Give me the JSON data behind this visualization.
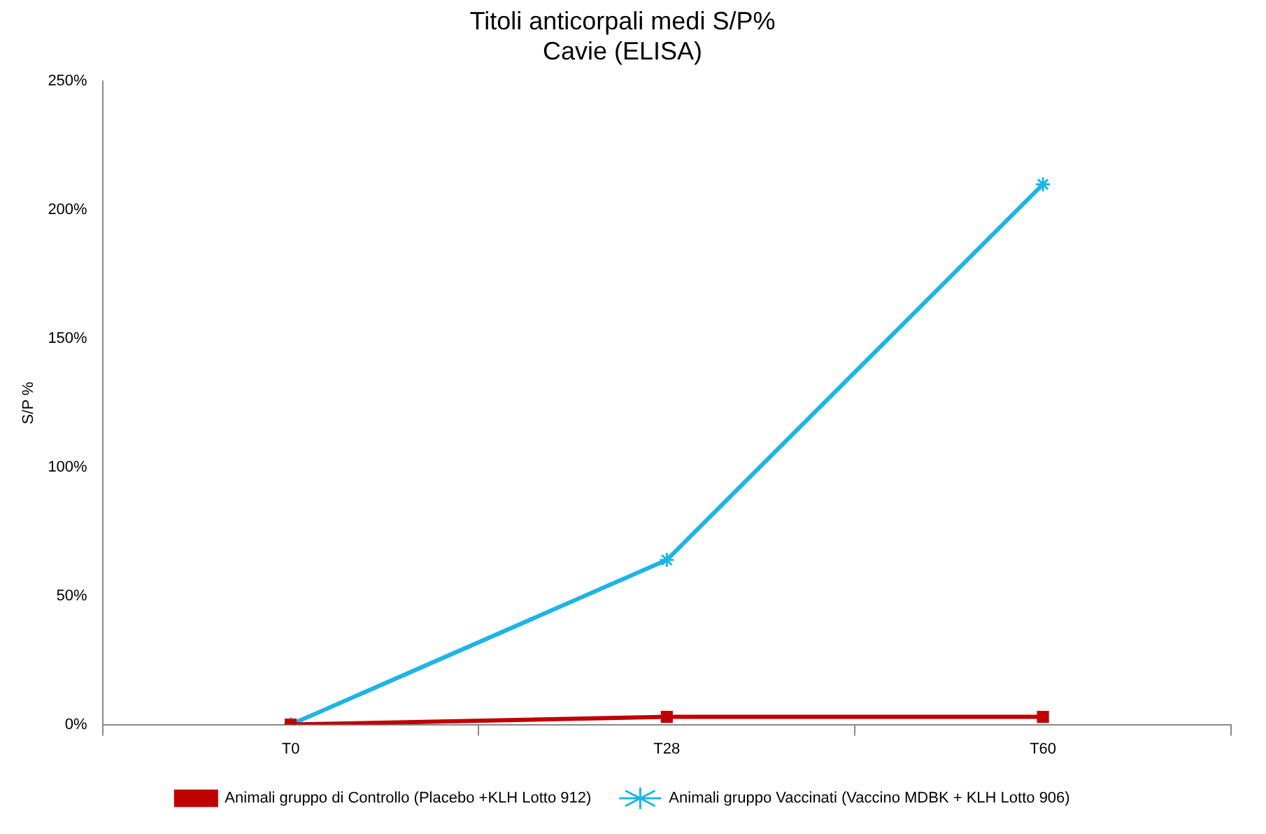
{
  "chart_data": {
    "type": "line",
    "title": "Titoli anticorpali medi S/P%",
    "subtitle": "Cavie (ELISA)",
    "ylabel": "S/P %",
    "categories": [
      "T0",
      "T28",
      "T60"
    ],
    "series": [
      {
        "name": "Animali gruppo di Controllo (Placebo +KLH Lotto 912)",
        "color": "#c00000",
        "marker": "square",
        "values": [
          0,
          3,
          3
        ]
      },
      {
        "name": "Animali gruppo Vaccinati (Vaccino MDBK + KLH Lotto 906)",
        "color": "#1eb4e6",
        "marker": "cross",
        "values": [
          0,
          64,
          210
        ]
      }
    ],
    "ylim": [
      0,
      250
    ],
    "yticks": [
      {
        "value": 0,
        "label": "0%"
      },
      {
        "value": 50,
        "label": "50%"
      },
      {
        "value": 100,
        "label": "100%"
      },
      {
        "value": 150,
        "label": "150%"
      },
      {
        "value": 200,
        "label": "200%"
      },
      {
        "value": 250,
        "label": "250%"
      }
    ],
    "grid": false,
    "legend": "bottom",
    "line_style": "solid"
  }
}
